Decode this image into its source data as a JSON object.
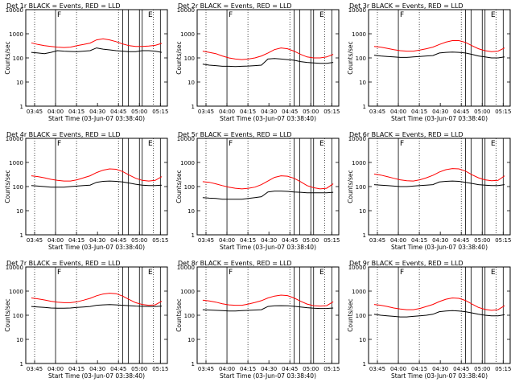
{
  "chart_data": [
    {
      "type": "line",
      "title": "Det 1r BLACK = Events, RED = LLD",
      "xlabel": "Start Time (03-Jun-07 03:38:40)",
      "ylabel": "Counts/sec",
      "x_ticks": [
        "03:45",
        "04:00",
        "04:15",
        "04:30",
        "04:45",
        "05:00",
        "05:15"
      ],
      "y_ticks": [
        "1",
        "10",
        "100",
        "1000",
        "10000"
      ],
      "y_scale": "log",
      "ylim": [
        1,
        10000
      ],
      "xlim_minutes": [
        "03:38:40",
        "05:20:00"
      ],
      "markers": [
        {
          "time": "04:00",
          "label": "F"
        },
        {
          "time": "05:05",
          "label": "E"
        }
      ],
      "series": [
        {
          "color": "#000000",
          "values": [
            170,
            160,
            150,
            170,
            200,
            190,
            185,
            180,
            190,
            200,
            260,
            230,
            215,
            200,
            190,
            180,
            180,
            200,
            200,
            190,
            170
          ]
        },
        {
          "color": "#ff0000",
          "values": [
            420,
            360,
            320,
            300,
            280,
            270,
            280,
            320,
            360,
            410,
            560,
            620,
            560,
            470,
            380,
            320,
            300,
            300,
            310,
            330,
            400
          ]
        }
      ]
    },
    {
      "type": "line",
      "title": "Det 2r BLACK = Events, RED = LLD",
      "xlabel": "Start Time (03-Jun-07 03:38:40)",
      "ylabel": "Counts/sec",
      "x_ticks": [
        "03:45",
        "04:00",
        "04:15",
        "04:30",
        "04:45",
        "05:00",
        "05:15"
      ],
      "y_ticks": [
        "1",
        "10",
        "100",
        "1000",
        "10000"
      ],
      "y_scale": "log",
      "ylim": [
        1,
        10000
      ],
      "markers": [
        {
          "time": "04:00",
          "label": "F"
        },
        {
          "time": "05:05",
          "label": "E"
        }
      ],
      "series": [
        {
          "color": "#000000",
          "values": [
            55,
            50,
            48,
            45,
            45,
            44,
            45,
            46,
            48,
            50,
            90,
            95,
            90,
            85,
            80,
            70,
            65,
            62,
            60,
            60,
            65
          ]
        },
        {
          "color": "#ff0000",
          "values": [
            190,
            170,
            150,
            120,
            100,
            90,
            85,
            90,
            100,
            120,
            160,
            220,
            260,
            240,
            190,
            140,
            110,
            100,
            100,
            110,
            140
          ]
        }
      ]
    },
    {
      "type": "line",
      "title": "Det 3r BLACK = Events, RED = LLD",
      "xlabel": "Start Time (03-Jun-07 03:38:40)",
      "ylabel": "Counts/sec",
      "x_ticks": [
        "03:45",
        "04:00",
        "04:15",
        "04:30",
        "04:45",
        "05:00",
        "05:15"
      ],
      "y_ticks": [
        "1",
        "10",
        "100",
        "1000",
        "10000"
      ],
      "y_scale": "log",
      "ylim": [
        1,
        10000
      ],
      "markers": [
        {
          "time": "04:00",
          "label": "F"
        },
        {
          "time": "05:05",
          "label": "E"
        }
      ],
      "series": [
        {
          "color": "#000000",
          "values": [
            130,
            120,
            115,
            110,
            105,
            105,
            110,
            115,
            120,
            125,
            160,
            170,
            175,
            170,
            160,
            140,
            120,
            110,
            100,
            100,
            110
          ]
        },
        {
          "color": "#ff0000",
          "values": [
            300,
            280,
            250,
            220,
            200,
            190,
            190,
            210,
            240,
            280,
            360,
            450,
            520,
            520,
            440,
            320,
            240,
            200,
            180,
            190,
            260
          ]
        }
      ]
    },
    {
      "type": "line",
      "title": "Det 4r BLACK = Events, RED = LLD",
      "xlabel": "Start Time (03-Jun-07 03:38:40)",
      "ylabel": "Counts/sec",
      "x_ticks": [
        "03:45",
        "04:00",
        "04:15",
        "04:30",
        "04:45",
        "05:00",
        "05:15"
      ],
      "y_ticks": [
        "1",
        "10",
        "100",
        "1000",
        "10000"
      ],
      "y_scale": "log",
      "ylim": [
        1,
        10000
      ],
      "markers": [
        {
          "time": "04:00",
          "label": "F"
        },
        {
          "time": "05:05",
          "label": "E"
        }
      ],
      "series": [
        {
          "color": "#000000",
          "values": [
            110,
            105,
            100,
            95,
            95,
            95,
            100,
            105,
            110,
            115,
            150,
            165,
            170,
            165,
            155,
            140,
            125,
            115,
            110,
            110,
            115
          ]
        },
        {
          "color": "#ff0000",
          "values": [
            280,
            260,
            230,
            200,
            180,
            170,
            170,
            190,
            230,
            280,
            380,
            480,
            540,
            520,
            420,
            300,
            220,
            180,
            170,
            180,
            260
          ]
        }
      ]
    },
    {
      "type": "line",
      "title": "Det 5r BLACK = Events, RED = LLD",
      "xlabel": "Start Time (03-Jun-07 03:38:40)",
      "ylabel": "Counts/sec",
      "x_ticks": [
        "03:45",
        "04:00",
        "04:15",
        "04:30",
        "04:45",
        "05:00",
        "05:15"
      ],
      "y_ticks": [
        "1",
        "10",
        "100",
        "1000",
        "10000"
      ],
      "y_scale": "log",
      "ylim": [
        1,
        10000
      ],
      "markers": [
        {
          "time": "04:00",
          "label": "F"
        },
        {
          "time": "05:05",
          "label": "E"
        }
      ],
      "series": [
        {
          "color": "#000000",
          "values": [
            35,
            33,
            32,
            30,
            30,
            30,
            30,
            32,
            35,
            38,
            60,
            65,
            65,
            63,
            60,
            58,
            55,
            55,
            55,
            55,
            58
          ]
        },
        {
          "color": "#ff0000",
          "values": [
            160,
            150,
            130,
            110,
            95,
            85,
            80,
            85,
            95,
            120,
            170,
            240,
            280,
            270,
            220,
            160,
            110,
            90,
            80,
            85,
            130
          ]
        }
      ]
    },
    {
      "type": "line",
      "title": "Det 6r BLACK = Events, RED = LLD",
      "xlabel": "Start Time (03-Jun-07 03:38:40)",
      "ylabel": "Counts/sec",
      "x_ticks": [
        "03:45",
        "04:00",
        "04:15",
        "04:30",
        "04:45",
        "05:00",
        "05:15"
      ],
      "y_ticks": [
        "1",
        "10",
        "100",
        "1000",
        "10000"
      ],
      "y_scale": "log",
      "ylim": [
        1,
        10000
      ],
      "markers": [
        {
          "time": "04:00",
          "label": "F"
        },
        {
          "time": "05:05",
          "label": "E"
        }
      ],
      "series": [
        {
          "color": "#000000",
          "values": [
            120,
            115,
            110,
            105,
            100,
            100,
            105,
            110,
            115,
            120,
            155,
            165,
            170,
            165,
            150,
            135,
            120,
            115,
            110,
            110,
            120
          ]
        },
        {
          "color": "#ff0000",
          "values": [
            330,
            300,
            260,
            220,
            190,
            175,
            170,
            190,
            230,
            290,
            400,
            500,
            560,
            540,
            440,
            310,
            230,
            190,
            175,
            180,
            280
          ]
        }
      ]
    },
    {
      "type": "line",
      "title": "Det 7r BLACK = Events, RED = LLD",
      "xlabel": "Start Time (03-Jun-07 03:38:40)",
      "ylabel": "Counts/sec",
      "x_ticks": [
        "03:45",
        "04:00",
        "04:15",
        "04:30",
        "04:45",
        "05:00",
        "05:15"
      ],
      "y_ticks": [
        "1",
        "10",
        "100",
        "1000",
        "10000"
      ],
      "y_scale": "log",
      "ylim": [
        1,
        10000
      ],
      "markers": [
        {
          "time": "04:00",
          "label": "F"
        },
        {
          "time": "05:05",
          "label": "E"
        }
      ],
      "series": [
        {
          "color": "#000000",
          "values": [
            230,
            220,
            210,
            200,
            195,
            195,
            200,
            210,
            220,
            230,
            260,
            270,
            275,
            270,
            260,
            250,
            240,
            235,
            230,
            230,
            240
          ]
        },
        {
          "color": "#ff0000",
          "values": [
            520,
            480,
            430,
            380,
            350,
            330,
            330,
            360,
            420,
            500,
            640,
            760,
            820,
            780,
            620,
            450,
            330,
            280,
            260,
            270,
            380
          ]
        }
      ]
    },
    {
      "type": "line",
      "title": "Det 8r BLACK = Events, RED = LLD",
      "xlabel": "Start Time (03-Jun-07 03:38:40)",
      "ylabel": "Counts/sec",
      "x_ticks": [
        "03:45",
        "04:00",
        "04:15",
        "04:30",
        "04:45",
        "05:00",
        "05:15"
      ],
      "y_ticks": [
        "1",
        "10",
        "100",
        "1000",
        "10000"
      ],
      "y_scale": "log",
      "ylim": [
        1,
        10000
      ],
      "markers": [
        {
          "time": "04:00",
          "label": "F"
        },
        {
          "time": "05:05",
          "label": "E"
        }
      ],
      "series": [
        {
          "color": "#000000",
          "values": [
            170,
            165,
            160,
            155,
            150,
            150,
            155,
            160,
            165,
            170,
            230,
            245,
            250,
            245,
            235,
            220,
            205,
            195,
            190,
            190,
            200
          ]
        },
        {
          "color": "#ff0000",
          "values": [
            420,
            390,
            350,
            300,
            270,
            260,
            260,
            290,
            340,
            400,
            520,
            620,
            680,
            650,
            520,
            380,
            290,
            250,
            240,
            250,
            360
          ]
        }
      ]
    },
    {
      "type": "line",
      "title": "Det 9r BLACK = Events, RED = LLD",
      "xlabel": "Start Time (03-Jun-07 03:38:40)",
      "ylabel": "Counts/sec",
      "x_ticks": [
        "03:45",
        "04:00",
        "04:15",
        "04:30",
        "04:45",
        "05:00",
        "05:15"
      ],
      "y_ticks": [
        "1",
        "10",
        "100",
        "1000",
        "10000"
      ],
      "y_scale": "log",
      "ylim": [
        1,
        10000
      ],
      "markers": [
        {
          "time": "04:00",
          "label": "F"
        },
        {
          "time": "05:05",
          "label": "E"
        }
      ],
      "series": [
        {
          "color": "#000000",
          "values": [
            110,
            100,
            95,
            90,
            85,
            85,
            90,
            95,
            100,
            110,
            140,
            150,
            155,
            150,
            140,
            125,
            110,
            100,
            95,
            95,
            105
          ]
        },
        {
          "color": "#ff0000",
          "values": [
            280,
            260,
            230,
            200,
            180,
            170,
            170,
            190,
            230,
            280,
            370,
            460,
            520,
            500,
            410,
            290,
            210,
            175,
            160,
            170,
            250
          ]
        }
      ]
    }
  ]
}
